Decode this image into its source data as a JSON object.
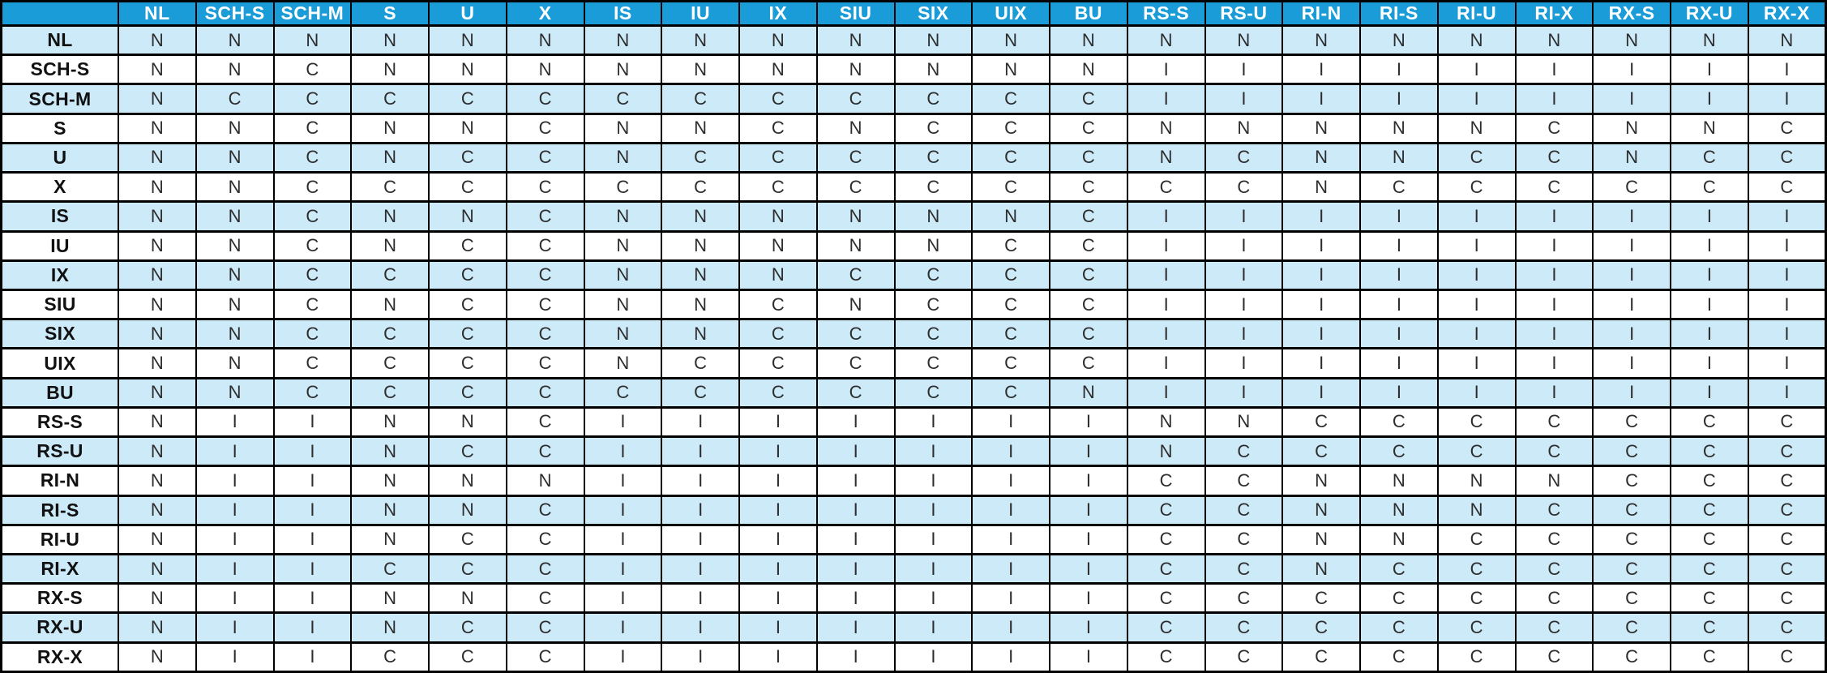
{
  "table": {
    "columns": [
      "NL",
      "SCH-S",
      "SCH-M",
      "S",
      "U",
      "X",
      "IS",
      "IU",
      "IX",
      "SIU",
      "SIX",
      "UIX",
      "BU",
      "RS-S",
      "RS-U",
      "RI-N",
      "RI-S",
      "RI-U",
      "RI-X",
      "RX-S",
      "RX-U",
      "RX-X"
    ],
    "rows": [
      {
        "label": "NL",
        "values": [
          "N",
          "N",
          "N",
          "N",
          "N",
          "N",
          "N",
          "N",
          "N",
          "N",
          "N",
          "N",
          "N",
          "N",
          "N",
          "N",
          "N",
          "N",
          "N",
          "N",
          "N",
          "N"
        ]
      },
      {
        "label": "SCH-S",
        "values": [
          "N",
          "N",
          "C",
          "N",
          "N",
          "N",
          "N",
          "N",
          "N",
          "N",
          "N",
          "N",
          "N",
          "I",
          "I",
          "I",
          "I",
          "I",
          "I",
          "I",
          "I",
          "I"
        ]
      },
      {
        "label": "SCH-M",
        "values": [
          "N",
          "C",
          "C",
          "C",
          "C",
          "C",
          "C",
          "C",
          "C",
          "C",
          "C",
          "C",
          "C",
          "I",
          "I",
          "I",
          "I",
          "I",
          "I",
          "I",
          "I",
          "I"
        ]
      },
      {
        "label": "S",
        "values": [
          "N",
          "N",
          "C",
          "N",
          "N",
          "C",
          "N",
          "N",
          "C",
          "N",
          "C",
          "C",
          "C",
          "N",
          "N",
          "N",
          "N",
          "N",
          "C",
          "N",
          "N",
          "C"
        ]
      },
      {
        "label": "U",
        "values": [
          "N",
          "N",
          "C",
          "N",
          "C",
          "C",
          "N",
          "C",
          "C",
          "C",
          "C",
          "C",
          "C",
          "N",
          "C",
          "N",
          "N",
          "C",
          "C",
          "N",
          "C",
          "C"
        ]
      },
      {
        "label": "X",
        "values": [
          "N",
          "N",
          "C",
          "C",
          "C",
          "C",
          "C",
          "C",
          "C",
          "C",
          "C",
          "C",
          "C",
          "C",
          "C",
          "N",
          "C",
          "C",
          "C",
          "C",
          "C",
          "C"
        ]
      },
      {
        "label": "IS",
        "values": [
          "N",
          "N",
          "C",
          "N",
          "N",
          "C",
          "N",
          "N",
          "N",
          "N",
          "N",
          "N",
          "C",
          "I",
          "I",
          "I",
          "I",
          "I",
          "I",
          "I",
          "I",
          "I"
        ]
      },
      {
        "label": "IU",
        "values": [
          "N",
          "N",
          "C",
          "N",
          "C",
          "C",
          "N",
          "N",
          "N",
          "N",
          "N",
          "C",
          "C",
          "I",
          "I",
          "I",
          "I",
          "I",
          "I",
          "I",
          "I",
          "I"
        ]
      },
      {
        "label": "IX",
        "values": [
          "N",
          "N",
          "C",
          "C",
          "C",
          "C",
          "N",
          "N",
          "N",
          "C",
          "C",
          "C",
          "C",
          "I",
          "I",
          "I",
          "I",
          "I",
          "I",
          "I",
          "I",
          "I"
        ]
      },
      {
        "label": "SIU",
        "values": [
          "N",
          "N",
          "C",
          "N",
          "C",
          "C",
          "N",
          "N",
          "C",
          "N",
          "C",
          "C",
          "C",
          "I",
          "I",
          "I",
          "I",
          "I",
          "I",
          "I",
          "I",
          "I"
        ]
      },
      {
        "label": "SIX",
        "values": [
          "N",
          "N",
          "C",
          "C",
          "C",
          "C",
          "N",
          "N",
          "C",
          "C",
          "C",
          "C",
          "C",
          "I",
          "I",
          "I",
          "I",
          "I",
          "I",
          "I",
          "I",
          "I"
        ]
      },
      {
        "label": "UIX",
        "values": [
          "N",
          "N",
          "C",
          "C",
          "C",
          "C",
          "N",
          "C",
          "C",
          "C",
          "C",
          "C",
          "C",
          "I",
          "I",
          "I",
          "I",
          "I",
          "I",
          "I",
          "I",
          "I"
        ]
      },
      {
        "label": "BU",
        "values": [
          "N",
          "N",
          "C",
          "C",
          "C",
          "C",
          "C",
          "C",
          "C",
          "C",
          "C",
          "C",
          "N",
          "I",
          "I",
          "I",
          "I",
          "I",
          "I",
          "I",
          "I",
          "I"
        ]
      },
      {
        "label": "RS-S",
        "values": [
          "N",
          "I",
          "I",
          "N",
          "N",
          "C",
          "I",
          "I",
          "I",
          "I",
          "I",
          "I",
          "I",
          "N",
          "N",
          "C",
          "C",
          "C",
          "C",
          "C",
          "C",
          "C"
        ]
      },
      {
        "label": "RS-U",
        "values": [
          "N",
          "I",
          "I",
          "N",
          "C",
          "C",
          "I",
          "I",
          "I",
          "I",
          "I",
          "I",
          "I",
          "N",
          "C",
          "C",
          "C",
          "C",
          "C",
          "C",
          "C",
          "C"
        ]
      },
      {
        "label": "RI-N",
        "values": [
          "N",
          "I",
          "I",
          "N",
          "N",
          "N",
          "I",
          "I",
          "I",
          "I",
          "I",
          "I",
          "I",
          "C",
          "C",
          "N",
          "N",
          "N",
          "N",
          "C",
          "C",
          "C"
        ]
      },
      {
        "label": "RI-S",
        "values": [
          "N",
          "I",
          "I",
          "N",
          "N",
          "C",
          "I",
          "I",
          "I",
          "I",
          "I",
          "I",
          "I",
          "C",
          "C",
          "N",
          "N",
          "N",
          "C",
          "C",
          "C",
          "C"
        ]
      },
      {
        "label": "RI-U",
        "values": [
          "N",
          "I",
          "I",
          "N",
          "C",
          "C",
          "I",
          "I",
          "I",
          "I",
          "I",
          "I",
          "I",
          "C",
          "C",
          "N",
          "N",
          "C",
          "C",
          "C",
          "C",
          "C"
        ]
      },
      {
        "label": "RI-X",
        "values": [
          "N",
          "I",
          "I",
          "C",
          "C",
          "C",
          "I",
          "I",
          "I",
          "I",
          "I",
          "I",
          "I",
          "C",
          "C",
          "N",
          "C",
          "C",
          "C",
          "C",
          "C",
          "C"
        ]
      },
      {
        "label": "RX-S",
        "values": [
          "N",
          "I",
          "I",
          "N",
          "N",
          "C",
          "I",
          "I",
          "I",
          "I",
          "I",
          "I",
          "I",
          "C",
          "C",
          "C",
          "C",
          "C",
          "C",
          "C",
          "C",
          "C"
        ]
      },
      {
        "label": "RX-U",
        "values": [
          "N",
          "I",
          "I",
          "N",
          "C",
          "C",
          "I",
          "I",
          "I",
          "I",
          "I",
          "I",
          "I",
          "C",
          "C",
          "C",
          "C",
          "C",
          "C",
          "C",
          "C",
          "C"
        ]
      },
      {
        "label": "RX-X",
        "values": [
          "N",
          "I",
          "I",
          "C",
          "C",
          "C",
          "I",
          "I",
          "I",
          "I",
          "I",
          "I",
          "I",
          "C",
          "C",
          "C",
          "C",
          "C",
          "C",
          "C",
          "C",
          "C"
        ]
      }
    ]
  },
  "colors": {
    "header_bg": "#1a9cd8",
    "header_text": "#ffffff",
    "row_stripe_bg": "#cdeaf9",
    "row_white_bg": "#ffffff",
    "border": "#000000",
    "cell_text": "#2d2d2d",
    "label_text": "#111111"
  }
}
